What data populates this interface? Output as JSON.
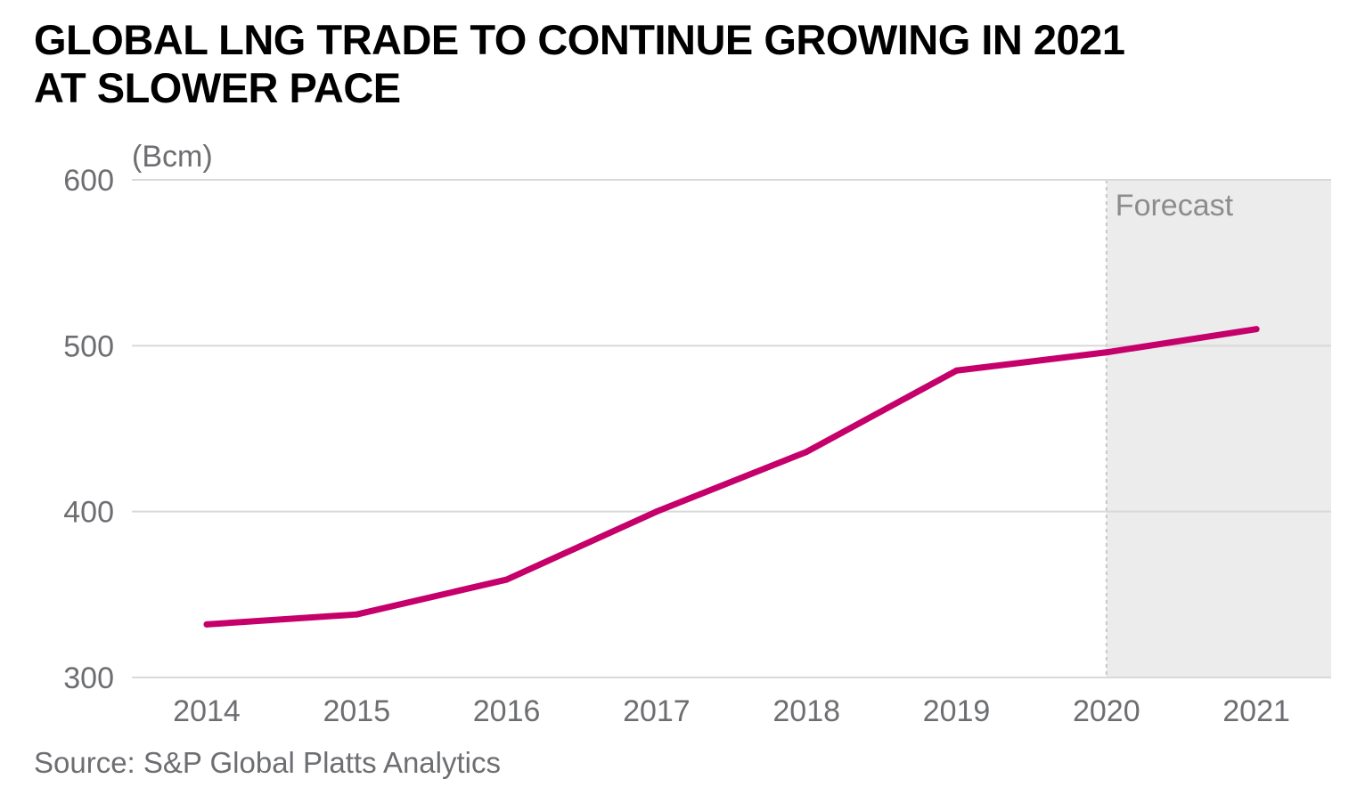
{
  "title_lines": [
    "GLOBAL LNG TRADE TO CONTINUE GROWING IN 2021",
    "AT SLOWER PACE"
  ],
  "source": "Source: S&P Global Platts Analytics",
  "colors": {
    "line": "#c5006b",
    "grid": "#d9d9d9",
    "forecast_band": "#ececec",
    "tick_text": "#6d6e71",
    "forecast_text": "#8c8c8c"
  },
  "chart_data": {
    "type": "line",
    "ylabel": "(Bcm)",
    "ylim": [
      300,
      600
    ],
    "yticks": [
      "300",
      "400",
      "500",
      "600"
    ],
    "categories": [
      "2014",
      "2015",
      "2016",
      "2017",
      "2018",
      "2019",
      "2020",
      "2021"
    ],
    "series": [
      {
        "values": [
          332,
          338,
          359,
          400,
          436,
          485,
          496,
          510
        ]
      }
    ],
    "forecast": {
      "label": "Forecast",
      "from": "2020",
      "to": "2021"
    },
    "grid": true,
    "legend": "none"
  }
}
